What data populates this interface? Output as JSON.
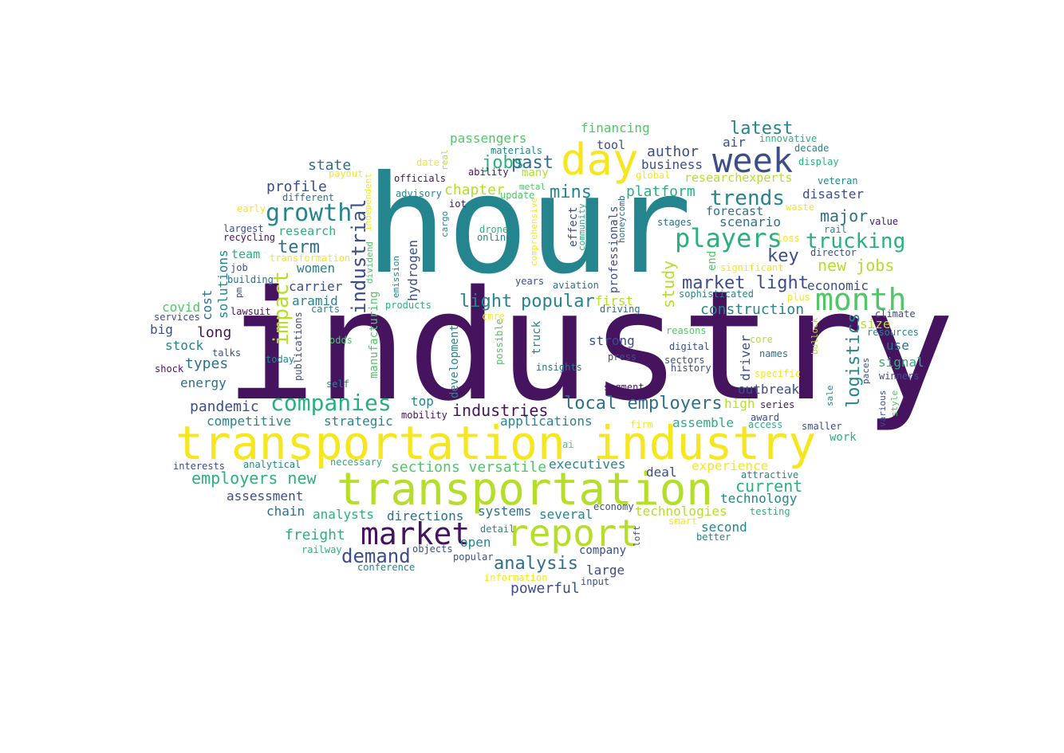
{
  "palette": {
    "deep_purple": "#46135f",
    "indigo": "#3b4e8a",
    "blue": "#2e6e8e",
    "teal": "#25858e",
    "green": "#2ab07f",
    "light_green": "#52c569",
    "lime": "#b5de2b",
    "yellow": "#f5e61f"
  },
  "words": [
    "industry",
    "hour",
    "transportation industry",
    "transportation",
    "report",
    "market",
    "day",
    "week",
    "month",
    "players",
    "growth",
    "companies",
    "trends",
    "trucking",
    "industrial",
    "impact",
    "local employers",
    "industries",
    "demand",
    "analysis",
    "jobs",
    "past",
    "mins",
    "latest",
    "light",
    "popular",
    "market light",
    "key",
    "new jobs",
    "term",
    "study",
    "logistics",
    "current",
    "employers new",
    "financing",
    "author",
    "business",
    "tool",
    "air",
    "platform",
    "chapter",
    "passengers",
    "disaster",
    "major",
    "forecast",
    "scenario",
    "researchexperts",
    "state",
    "profile",
    "research",
    "economic",
    "construction",
    "team",
    "women",
    "carrier",
    "aramid",
    "covid",
    "cost",
    "solutions",
    "big",
    "stock",
    "long",
    "types",
    "energy",
    "pandemic",
    "competitive",
    "strategic",
    "top",
    "applications",
    "first",
    "strong",
    "driver",
    "outbreak",
    "high",
    "assemble",
    "signal",
    "use",
    "size",
    "work",
    "assessment",
    "chain",
    "analysts",
    "directions",
    "systems",
    "several",
    "technologies",
    "technology",
    "freight",
    "open",
    "company",
    "large",
    "powerful",
    "deal",
    "executives",
    "experience",
    "sections versatile",
    "second",
    "hydrogen",
    "manufacturing",
    "development",
    "truck",
    "professionals",
    "effect",
    "many",
    "officials",
    "advisory",
    "iot",
    "cargo",
    "drone",
    "online",
    "materials",
    "ability",
    "update",
    "metal",
    "comprehensive",
    "community",
    "honeycomb",
    "stages",
    "loss",
    "director",
    "rail",
    "value",
    "veteran",
    "display",
    "decade",
    "innovative",
    "global",
    "waste",
    "significant",
    "plus",
    "climate",
    "resources",
    "sophisticated",
    "aviation",
    "years",
    "products",
    "emission",
    "dividend",
    "transformation",
    "building",
    "job",
    "largest",
    "recycling",
    "early",
    "different",
    "payout",
    "independent",
    "real",
    "date",
    "lawsuit",
    "carts",
    "services",
    "shock",
    "talks",
    "today",
    "publications",
    "odds",
    "cmre",
    "possible",
    "self",
    "insights",
    "digital",
    "history",
    "sectors",
    "press",
    "reasons",
    "core",
    "names",
    "specific",
    "bullock",
    "paces",
    "various",
    "style",
    "winners",
    "sale",
    "series",
    "award",
    "access",
    "smaller",
    "firm",
    "ai",
    "necessary",
    "interests",
    "analytical",
    "mobility",
    "segment",
    "driving",
    "loft",
    "economy",
    "smart",
    "testing",
    "attractive",
    "better",
    "detail",
    "objects",
    "popular",
    "railway",
    "conference",
    "information",
    "input",
    "end",
    "pm"
  ]
}
